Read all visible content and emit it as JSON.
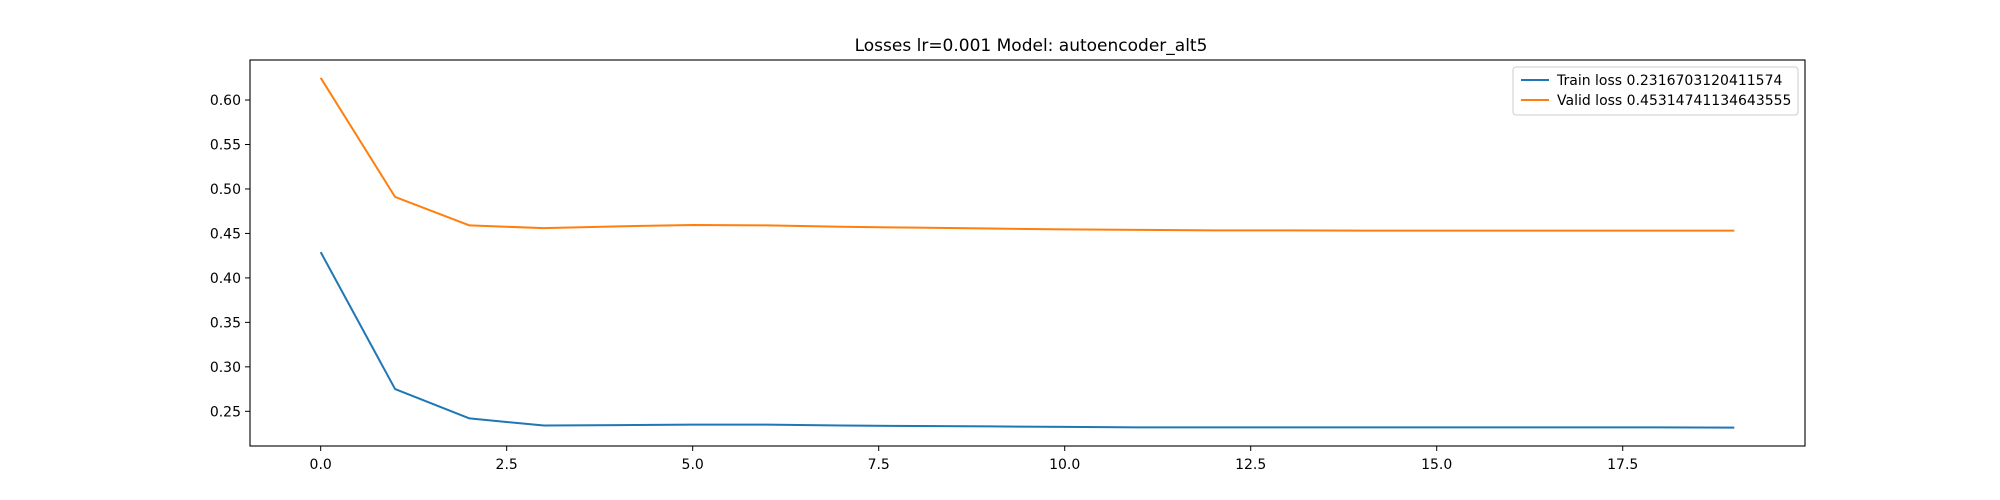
{
  "chart_data": {
    "type": "line",
    "title": "Losses lr=0.001 Model: autoencoder_alt5",
    "xlabel": "",
    "ylabel": "",
    "xlim": [
      -0.95,
      19.95
    ],
    "ylim": [
      0.211,
      0.645
    ],
    "x_ticks": [
      0.0,
      2.5,
      5.0,
      7.5,
      10.0,
      12.5,
      15.0,
      17.5
    ],
    "x_tick_labels": [
      "0.0",
      "2.5",
      "5.0",
      "7.5",
      "10.0",
      "12.5",
      "15.0",
      "17.5"
    ],
    "y_ticks": [
      0.25,
      0.3,
      0.35,
      0.4,
      0.45,
      0.5,
      0.55,
      0.6
    ],
    "y_tick_labels": [
      "0.25",
      "0.30",
      "0.35",
      "0.40",
      "0.45",
      "0.50",
      "0.55",
      "0.60"
    ],
    "grid": false,
    "legend_position": "top-right",
    "x": [
      0,
      1,
      2,
      3,
      4,
      5,
      6,
      7,
      8,
      9,
      10,
      11,
      12,
      13,
      14,
      15,
      16,
      17,
      18,
      19
    ],
    "series": [
      {
        "name": "Train loss 0.2316703120411574",
        "color": "#1f77b4",
        "values": [
          0.429,
          0.275,
          0.242,
          0.234,
          0.2345,
          0.235,
          0.235,
          0.234,
          0.2335,
          0.233,
          0.2325,
          0.232,
          0.232,
          0.232,
          0.232,
          0.232,
          0.232,
          0.232,
          0.232,
          0.2317
        ]
      },
      {
        "name": "Valid loss 0.45314741134643555",
        "color": "#ff7f0e",
        "values": [
          0.625,
          0.491,
          0.459,
          0.456,
          0.458,
          0.4595,
          0.459,
          0.4575,
          0.4565,
          0.4555,
          0.4545,
          0.454,
          0.4535,
          0.4535,
          0.4532,
          0.4532,
          0.4532,
          0.4532,
          0.4532,
          0.4531
        ]
      }
    ]
  }
}
